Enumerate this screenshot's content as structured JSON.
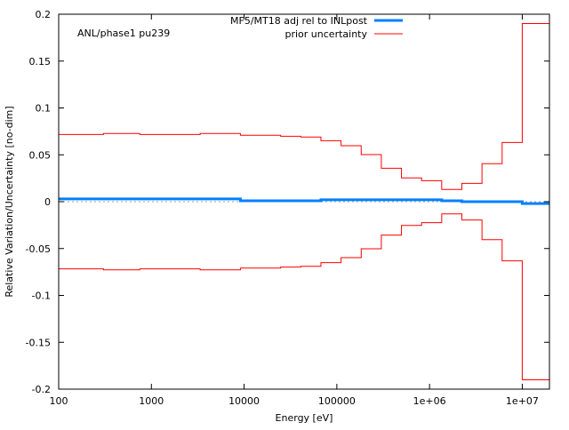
{
  "chart_data": {
    "type": "line",
    "step": true,
    "title": "",
    "annotation": "ANL/phase1 pu239",
    "xlabel": "Energy [eV]",
    "ylabel": "Relative Variation/Uncertainty [no-dim]",
    "xscale": "log",
    "xlim": [
      100,
      19640000
    ],
    "ylim": [
      -0.2,
      0.2
    ],
    "grid": false,
    "zero_line": true,
    "legend_position": "top-right",
    "x_ticks": [
      {
        "value": 100,
        "label": "100"
      },
      {
        "value": 1000,
        "label": "1000"
      },
      {
        "value": 10000,
        "label": "10000"
      },
      {
        "value": 100000,
        "label": "100000"
      },
      {
        "value": 1000000,
        "label": "1e+06"
      },
      {
        "value": 10000000,
        "label": "1e+07"
      }
    ],
    "y_ticks": [
      {
        "value": 0.2,
        "label": "0.2"
      },
      {
        "value": 0.15,
        "label": "0.15"
      },
      {
        "value": 0.1,
        "label": "0.1"
      },
      {
        "value": 0.05,
        "label": "0.05"
      },
      {
        "value": 0,
        "label": "0"
      },
      {
        "value": -0.05,
        "label": "-0.05"
      },
      {
        "value": -0.1,
        "label": "-0.1"
      },
      {
        "value": -0.15,
        "label": "-0.15"
      },
      {
        "value": -0.2,
        "label": "-0.2"
      }
    ],
    "bin_edges": [
      100,
      304.3,
      748.5,
      3355,
      9119,
      24790,
      40870,
      67380,
      111100,
      183200,
      302000,
      497900,
      820900,
      1353000,
      2231000,
      3679000,
      6065000,
      10000000,
      19640000
    ],
    "series": [
      {
        "name": "MF5/MT18 adj rel to INLpost",
        "color": "#0080ff",
        "values": [
          0.003,
          0.003,
          0.003,
          0.003,
          0.001,
          0.001,
          0.001,
          0.002,
          0.002,
          0.002,
          0.002,
          0.002,
          0.002,
          0.001,
          0.0,
          0.0,
          0.0,
          -0.002
        ]
      },
      {
        "name": "prior uncertainty",
        "color": "#ff0000",
        "symmetric": true,
        "values": [
          0.0717,
          0.0727,
          0.0717,
          0.0727,
          0.0708,
          0.0698,
          0.0689,
          0.0651,
          0.0597,
          0.0502,
          0.0357,
          0.0253,
          0.0224,
          0.013,
          0.0196,
          0.0405,
          0.0632,
          0.19
        ]
      }
    ]
  }
}
